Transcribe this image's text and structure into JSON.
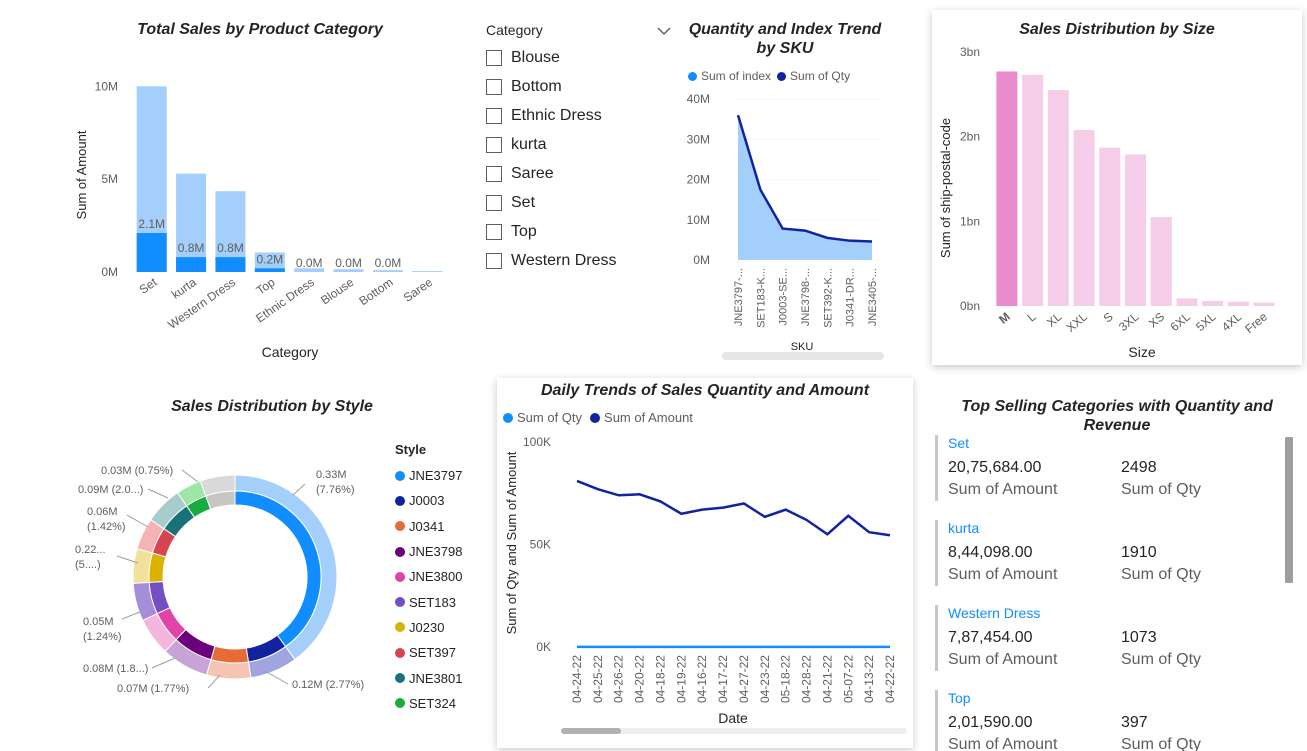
{
  "visuals": {
    "category_chart": {
      "title": "Total Sales by Product Category",
      "xlabel": "Category",
      "ylabel": "Sum of Amount"
    },
    "slicer": {
      "title": "Category",
      "items": [
        "Blouse",
        "Bottom",
        "Ethnic Dress",
        "kurta",
        "Saree",
        "Set",
        "Top",
        "Western Dress"
      ]
    },
    "sku_chart": {
      "title_line1": "Quantity and Index Trend",
      "title_line2": "by SKU",
      "legend": [
        "Sum of index",
        "Sum of Qty"
      ],
      "xlabel": "SKU"
    },
    "size_chart": {
      "title": "Sales Distribution by Size",
      "xlabel": "Size",
      "ylabel": "Sum of ship-postal-code"
    },
    "style_chart": {
      "title": "Sales Distribution by Style",
      "legend_title": "Style"
    },
    "daily_chart": {
      "title": "Daily Trends of Sales Quantity and Amount",
      "legend": [
        "Sum of Qty",
        "Sum of Amount"
      ],
      "xlabel": "Date",
      "ylabel": "Sum of Qty and Sum of Amount"
    },
    "top_card": {
      "title_line1": "Top Selling Categories with Quantity and",
      "title_line2": "Revenue",
      "amount_label": "Sum of Amount",
      "qty_label": "Sum of Qty",
      "rows": [
        {
          "category": "Set",
          "amount": "20,75,684.00",
          "qty": "2498"
        },
        {
          "category": "kurta",
          "amount": "8,44,098.00",
          "qty": "1910"
        },
        {
          "category": "Western Dress",
          "amount": "7,87,454.00",
          "qty": "1073"
        },
        {
          "category": "Top",
          "amount": "2,01,590.00",
          "qty": "397"
        }
      ]
    }
  },
  "colors": {
    "accent": "#118dff",
    "light_blue": "#a4cffa",
    "dark_navy": "#12239e",
    "size_highlight": "#e98bcc",
    "size_bars": "#f5cde8"
  },
  "chart_data": [
    {
      "type": "bar",
      "title": "Total Sales by Product Category",
      "xlabel": "Category",
      "ylabel": "Sum of Amount",
      "categories": [
        "Set",
        "kurta",
        "Western Dress",
        "Top",
        "Ethnic Dress",
        "Blouse",
        "Bottom",
        "Saree"
      ],
      "series": [
        {
          "values": [
            10.0,
            5.3,
            4.35,
            1.05,
            0.2,
            0.15,
            0.1,
            0.05
          ]
        },
        {
          "values": [
            2.1,
            0.8,
            0.8,
            0.2,
            0.0,
            0.0,
            0.0,
            0.0
          ]
        }
      ],
      "data_labels": [
        "2.1M",
        "0.8M",
        "0.8M",
        "0.2M",
        "0.0M",
        "0.0M",
        "0.0M",
        ""
      ],
      "yticks": [
        "0M",
        "5M",
        "10M"
      ],
      "ylim": [
        0,
        10.5
      ]
    },
    {
      "type": "area",
      "title": "Quantity and Index Trend by SKU",
      "xlabel": "SKU",
      "categories": [
        "JNE3797-...",
        "SET183-K...",
        "J0003-SE...",
        "JNE3798-...",
        "SET392-K...",
        "J0341-DR...",
        "JNE3405-..."
      ],
      "series": [
        {
          "name": "Sum of index",
          "values": [
            36,
            17.5,
            7.8,
            7.3,
            5.5,
            4.8,
            4.6
          ]
        },
        {
          "name": "Sum of Qty",
          "values": [
            36,
            17.5,
            7.8,
            7.3,
            5.5,
            4.8,
            4.6
          ]
        }
      ],
      "yticks": [
        "0M",
        "10M",
        "20M",
        "30M",
        "40M"
      ],
      "ylim": [
        0,
        40
      ]
    },
    {
      "type": "bar",
      "title": "Sales Distribution by Size",
      "xlabel": "Size",
      "ylabel": "Sum of ship-postal-code",
      "categories": [
        "M",
        "L",
        "XL",
        "XXL",
        "S",
        "3XL",
        "XS",
        "6XL",
        "5XL",
        "4XL",
        "Free"
      ],
      "values": [
        2.77,
        2.73,
        2.55,
        2.08,
        1.87,
        1.79,
        1.05,
        0.09,
        0.06,
        0.05,
        0.04
      ],
      "yticks": [
        "0bn",
        "1bn",
        "2bn",
        "3bn"
      ],
      "ylim": [
        0,
        3
      ]
    },
    {
      "type": "pie",
      "title": "Sales Distribution by Style",
      "legend": [
        "JNE3797",
        "J0003",
        "J0341",
        "JNE3798",
        "JNE3800",
        "SET183",
        "J0230",
        "SET397",
        "JNE3801",
        "SET324"
      ],
      "outer_labels": [
        "0.33M (7.76%)",
        "0.12M (2.77%)",
        "0.07M (1.77%)",
        "0.08M (1.8...)",
        "0.05M (1.24%)",
        "0.22... (5....)",
        "0.06M (1.42%)",
        "0.09M (2.0...)",
        "0.03M (0.75%)"
      ]
    },
    {
      "type": "line",
      "title": "Daily Trends of Sales Quantity and Amount",
      "xlabel": "Date",
      "ylabel": "Sum of Qty and Sum of Amount",
      "x": [
        "04-24-22",
        "04-25-22",
        "04-26-22",
        "04-20-22",
        "04-18-22",
        "04-19-22",
        "04-16-22",
        "04-17-22",
        "04-27-22",
        "04-23-22",
        "05-18-22",
        "04-28-22",
        "04-21-22",
        "05-07-22",
        "04-13-22",
        "04-22-22"
      ],
      "series": [
        {
          "name": "Sum of Amount",
          "values": [
            81,
            77,
            74,
            74.5,
            71,
            65,
            67,
            68,
            70,
            63.5,
            67,
            62,
            55,
            64,
            56,
            54.5
          ]
        },
        {
          "name": "Sum of Qty",
          "values": [
            0.05,
            0.05,
            0.05,
            0.05,
            0.05,
            0.05,
            0.05,
            0.05,
            0.05,
            0.05,
            0.05,
            0.05,
            0.05,
            0.05,
            0.05,
            0.05
          ]
        }
      ],
      "yticks": [
        "0K",
        "50K",
        "100K"
      ],
      "ylim": [
        0,
        100
      ]
    }
  ]
}
